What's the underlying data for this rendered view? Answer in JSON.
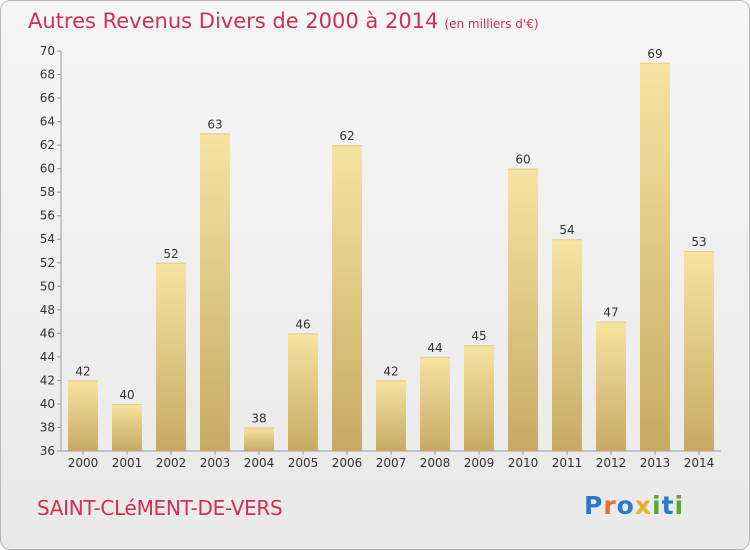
{
  "chart_data": {
    "type": "bar",
    "title": "Autres Revenus Divers de 2000 à 2014",
    "subtitle": "(en milliers d'€)",
    "categories": [
      "2000",
      "2001",
      "2002",
      "2003",
      "2004",
      "2005",
      "2006",
      "2007",
      "2008",
      "2009",
      "2010",
      "2011",
      "2012",
      "2013",
      "2014"
    ],
    "values": [
      42,
      40,
      52,
      63,
      38,
      46,
      62,
      42,
      44,
      45,
      60,
      54,
      47,
      69,
      53
    ],
    "ylim": [
      36,
      70
    ],
    "yticks": [
      36,
      38,
      40,
      42,
      44,
      46,
      48,
      50,
      52,
      54,
      56,
      58,
      60,
      62,
      64,
      66,
      68,
      70
    ],
    "grid": false,
    "bar_color_light": "#f6e4a2",
    "bar_color_dark": "#c8aa62",
    "data_labels": true
  },
  "footer": {
    "commune": "SAINT-CLéMENT-DE-VERS",
    "brand_letters": [
      {
        "ch": "P",
        "color": "#2d79c7"
      },
      {
        "ch": "r",
        "color": "#e4702a"
      },
      {
        "ch": "o",
        "color": "#2d79c7"
      },
      {
        "ch": "x",
        "color": "#e6b422"
      },
      {
        "ch": "i",
        "color": "#5aa63a"
      },
      {
        "ch": "t",
        "color": "#2d79c7"
      },
      {
        "ch": "i",
        "color": "#5aa63a"
      }
    ]
  },
  "colors": {
    "title": "#d13050",
    "axis": "#9a9a9a",
    "label_text": "#333333"
  }
}
